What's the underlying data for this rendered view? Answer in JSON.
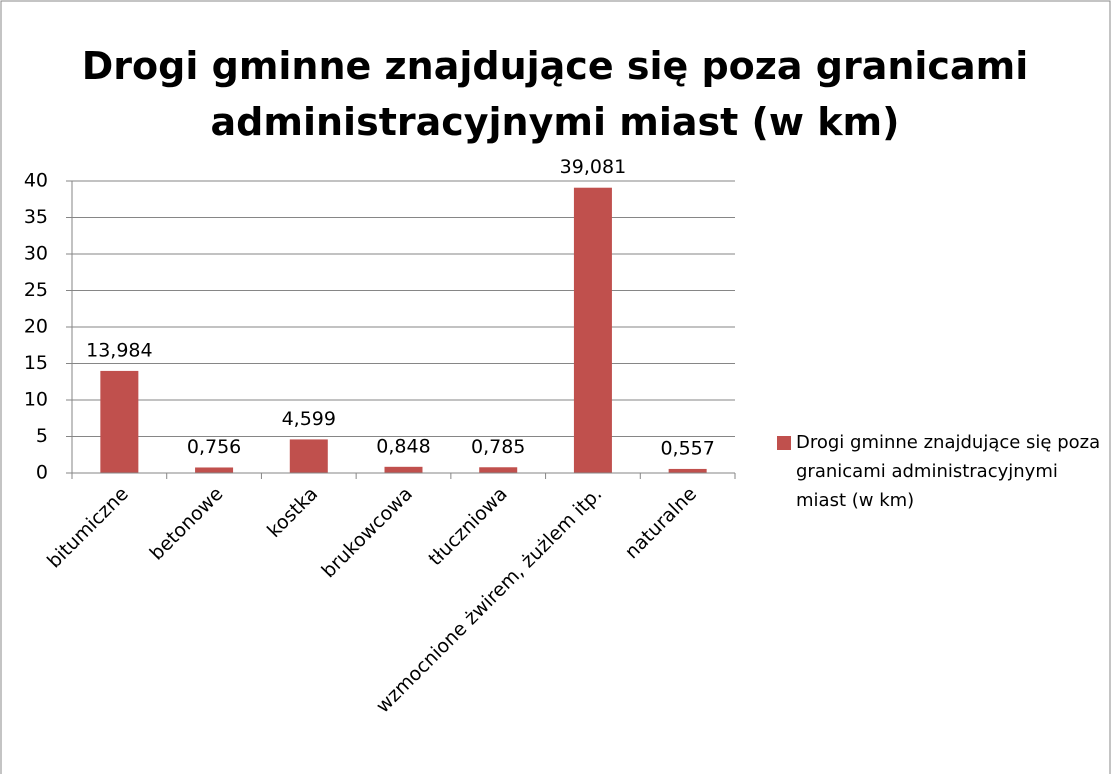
{
  "chart_data": {
    "type": "bar",
    "title": "Drogi gminne znajdujące się poza granicami administracyjnymi miast (w km)",
    "categories": [
      "bitumiczne",
      "betonowe",
      "kostka",
      "brukowcowa",
      "tłuczniowa",
      "wzmocnione żwirem, żużlem itp.",
      "naturalne"
    ],
    "series": [
      {
        "name": "Drogi gminne znajdujące się poza granicami administracyjnymi miast (w km)",
        "color": "#c0504d",
        "values": [
          13.984,
          0.756,
          4.599,
          0.848,
          0.785,
          39.081,
          0.557
        ],
        "value_labels": [
          "13,984",
          "0,756",
          "4,599",
          "0,848",
          "0,785",
          "39,081",
          "0,557"
        ]
      }
    ],
    "ylim": [
      0,
      40
    ],
    "yticks": [
      0,
      5,
      10,
      15,
      20,
      25,
      30,
      35,
      40
    ],
    "grid": true,
    "legend": "right"
  }
}
